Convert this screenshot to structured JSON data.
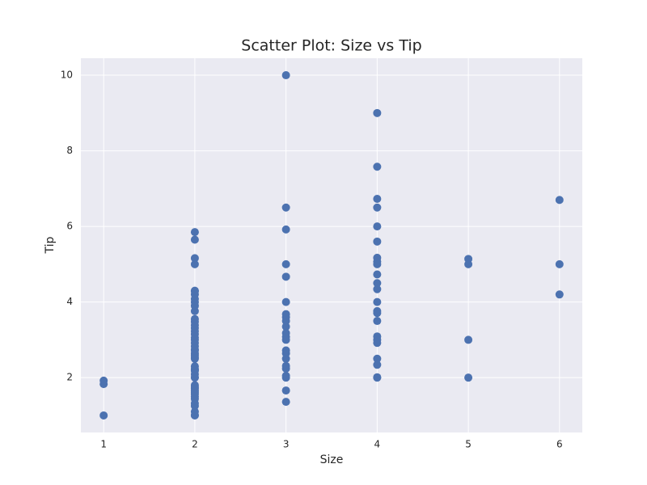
{
  "chart_data": {
    "type": "scatter",
    "title": "Scatter Plot: Size vs Tip",
    "x_label": "Size",
    "y_label": "Tip",
    "color": "#4c72b0",
    "grid": true,
    "xlim": [
      0.75,
      6.25
    ],
    "xticks": [
      1,
      2,
      3,
      4,
      5,
      6
    ],
    "ylim": [
      0.55,
      10.45
    ],
    "yticks": [
      2,
      4,
      6,
      8,
      10
    ],
    "x": [
      1,
      1,
      1,
      2,
      2,
      2,
      2,
      2,
      2,
      2,
      2,
      2,
      2,
      2,
      2,
      2,
      2,
      2,
      2,
      2,
      2,
      2,
      2,
      2,
      2,
      2,
      2,
      2,
      2,
      2,
      2,
      2,
      2,
      2,
      2,
      2,
      2,
      2,
      2,
      2,
      2,
      2,
      2,
      2,
      2,
      2,
      2,
      2,
      2,
      2,
      3,
      3,
      3,
      3,
      3,
      3,
      3,
      3,
      3,
      3,
      3,
      3,
      3,
      3,
      3,
      3,
      3,
      3,
      3,
      3,
      3,
      3,
      4,
      4,
      4,
      4,
      4,
      4,
      4,
      4,
      4,
      4,
      4,
      4,
      4,
      4,
      4,
      4,
      4,
      4,
      4,
      4,
      4,
      4,
      4,
      5,
      5,
      5,
      5,
      6,
      6,
      6
    ],
    "values": [
      1,
      1.83,
      1.92,
      1,
      1.01,
      1.1,
      1.25,
      1.32,
      1.44,
      1.5,
      1.56,
      1.61,
      1.66,
      1.71,
      1.75,
      1.8,
      2,
      2.01,
      2.09,
      2.18,
      2.2,
      2.23,
      2.3,
      2.5,
      2.54,
      2.6,
      2.64,
      2.72,
      2.75,
      2.83,
      2.92,
      3,
      3.06,
      3.15,
      3.23,
      3.31,
      3.39,
      3.48,
      3.55,
      3.76,
      3.9,
      4,
      4.08,
      4.2,
      4.29,
      4.3,
      5,
      5.16,
      5.65,
      5.85,
      1.36,
      1.66,
      2,
      2.05,
      2.24,
      2.31,
      2.5,
      2.64,
      2.72,
      3,
      3.08,
      3.18,
      3.35,
      3.5,
      3.6,
      3.68,
      4,
      4.67,
      5,
      5.92,
      6.5,
      10,
      2,
      2.01,
      2.34,
      2.5,
      2.92,
      3,
      3.09,
      3.5,
      3.71,
      3.76,
      4,
      4.34,
      4.5,
      4.73,
      5,
      5.07,
      5.17,
      5.6,
      6,
      6.5,
      6.73,
      7.58,
      9,
      2,
      3,
      5,
      5.14,
      4.2,
      5,
      6.7
    ]
  }
}
